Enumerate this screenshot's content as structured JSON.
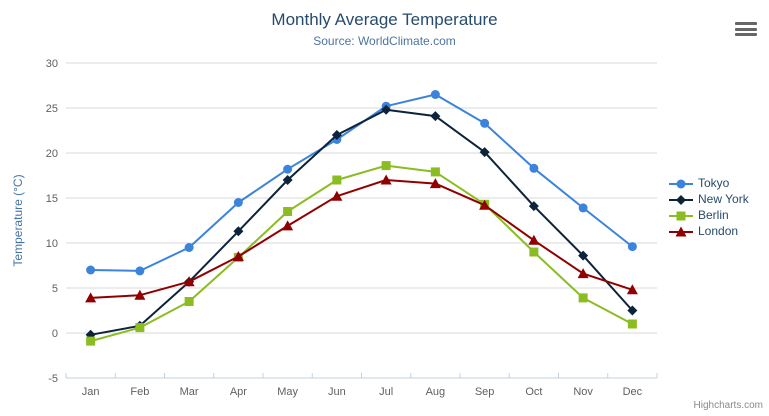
{
  "chart_data": {
    "type": "line",
    "title": "Monthly Average Temperature",
    "subtitle": "Source: WorldClimate.com",
    "ylabel": "Temperature (°C)",
    "xlabel": "",
    "ylim": [
      -5,
      30
    ],
    "ytick_step": 5,
    "grid": true,
    "legend_position": "right",
    "categories": [
      "Jan",
      "Feb",
      "Mar",
      "Apr",
      "May",
      "Jun",
      "Jul",
      "Aug",
      "Sep",
      "Oct",
      "Nov",
      "Dec"
    ],
    "series": [
      {
        "name": "Tokyo",
        "color": "#3c83dc",
        "marker": "circle",
        "values": [
          7.0,
          6.9,
          9.5,
          14.5,
          18.2,
          21.5,
          25.2,
          26.5,
          23.3,
          18.3,
          13.9,
          9.6
        ]
      },
      {
        "name": "New York",
        "color": "#0d233a",
        "marker": "diamond",
        "values": [
          -0.2,
          0.8,
          5.7,
          11.3,
          17.0,
          22.0,
          24.8,
          24.1,
          20.1,
          14.1,
          8.6,
          2.5
        ]
      },
      {
        "name": "Berlin",
        "color": "#8bbc21",
        "marker": "square",
        "values": [
          -0.9,
          0.6,
          3.5,
          8.4,
          13.5,
          17.0,
          18.6,
          17.9,
          14.3,
          9.0,
          3.9,
          1.0
        ]
      },
      {
        "name": "London",
        "color": "#910000",
        "marker": "triangle",
        "values": [
          3.9,
          4.2,
          5.7,
          8.5,
          11.9,
          15.2,
          17.0,
          16.6,
          14.2,
          10.3,
          6.6,
          4.8
        ]
      }
    ]
  },
  "colors": {
    "title": "#274b6d",
    "subtitle": "#4d759e",
    "axis_label": "#606060",
    "axis_title": "#4572a7",
    "gridline": "#d8d8d8",
    "axis_line": "#c0d0e0",
    "legend_text": "#274b6d",
    "credits": "#8a8a8a",
    "export_icon": "#666666"
  },
  "ui": {
    "export_button_icon": "hamburger-icon",
    "credits": "Highcharts.com"
  }
}
